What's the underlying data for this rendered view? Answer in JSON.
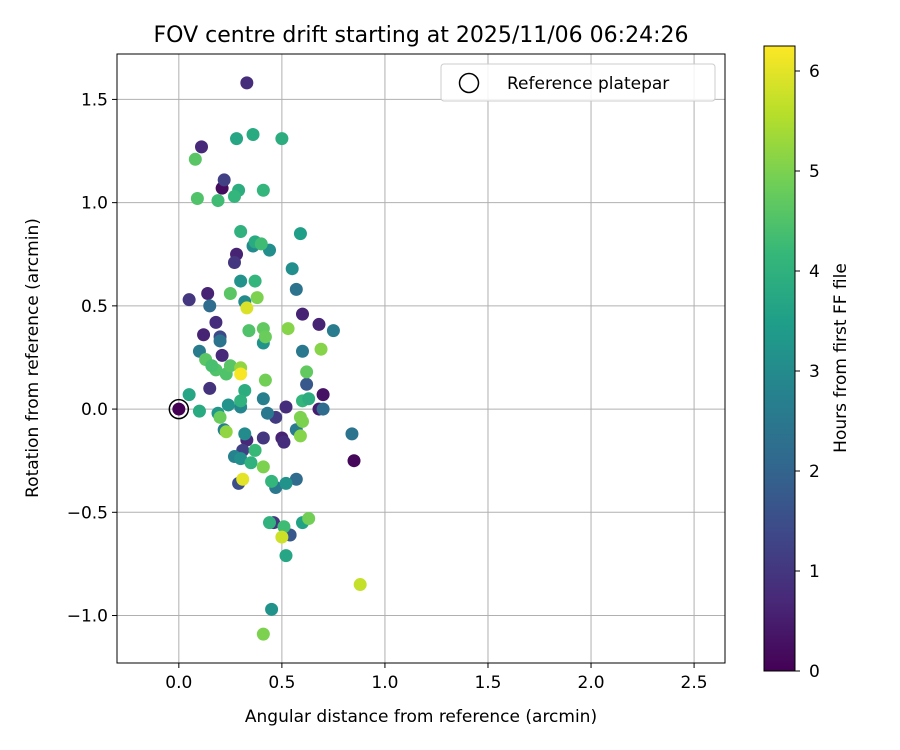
{
  "chart_data": {
    "type": "scatter",
    "title": "FOV centre drift starting at 2025/11/06 06:24:26",
    "xlabel": "Angular distance from reference (arcmin)",
    "ylabel": "Rotation from reference (arcmin)",
    "xlim": [
      -0.3,
      2.65
    ],
    "ylim": [
      -1.23,
      1.72
    ],
    "xticks": [
      0.0,
      0.5,
      1.0,
      1.5,
      2.0,
      2.5
    ],
    "xtick_labels": [
      "0.0",
      "0.5",
      "1.0",
      "1.5",
      "2.0",
      "2.5"
    ],
    "yticks": [
      -1.0,
      -0.5,
      0.0,
      0.5,
      1.0,
      1.5
    ],
    "ytick_labels": [
      "−1.0",
      "−0.5",
      "0.0",
      "0.5",
      "1.0",
      "1.5"
    ],
    "grid": true,
    "legend": {
      "position": "top-right",
      "label": "Reference platepar"
    },
    "reference_point": {
      "x": 0.0,
      "y": 0.0
    },
    "colorbar": {
      "label": "Hours from first FF file",
      "range": [
        0,
        6.25
      ],
      "ticks": [
        0,
        1,
        2,
        3,
        4,
        5,
        6
      ],
      "tick_labels": [
        "0",
        "1",
        "2",
        "3",
        "4",
        "5",
        "6"
      ],
      "colormap": "viridis"
    },
    "points": [
      {
        "x": 0.0,
        "y": 0.0,
        "c": 0.0
      },
      {
        "x": 0.33,
        "y": 1.58,
        "c": 0.8
      },
      {
        "x": 0.11,
        "y": 1.27,
        "c": 0.7
      },
      {
        "x": 0.21,
        "y": 1.07,
        "c": 0.2
      },
      {
        "x": 0.22,
        "y": 1.11,
        "c": 1.2
      },
      {
        "x": 0.28,
        "y": 0.75,
        "c": 0.6
      },
      {
        "x": 0.27,
        "y": 0.71,
        "c": 1.0
      },
      {
        "x": 0.05,
        "y": 0.53,
        "c": 1.0
      },
      {
        "x": 0.14,
        "y": 0.56,
        "c": 0.6
      },
      {
        "x": 0.12,
        "y": 0.36,
        "c": 0.6
      },
      {
        "x": 0.18,
        "y": 0.42,
        "c": 0.8
      },
      {
        "x": 0.2,
        "y": 0.35,
        "c": 1.4
      },
      {
        "x": 0.21,
        "y": 0.26,
        "c": 0.7
      },
      {
        "x": 0.15,
        "y": 0.1,
        "c": 0.9
      },
      {
        "x": 0.6,
        "y": 0.46,
        "c": 0.6
      },
      {
        "x": 0.68,
        "y": 0.41,
        "c": 0.6
      },
      {
        "x": 0.7,
        "y": 0.07,
        "c": 0.3
      },
      {
        "x": 0.68,
        "y": 0.0,
        "c": 0.5
      },
      {
        "x": 0.85,
        "y": -0.25,
        "c": 0.1
      },
      {
        "x": 0.52,
        "y": 0.01,
        "c": 0.8
      },
      {
        "x": 0.47,
        "y": -0.04,
        "c": 1.1
      },
      {
        "x": 0.41,
        "y": -0.14,
        "c": 1.0
      },
      {
        "x": 0.5,
        "y": -0.14,
        "c": 0.6
      },
      {
        "x": 0.51,
        "y": -0.16,
        "c": 0.8
      },
      {
        "x": 0.33,
        "y": -0.15,
        "c": 0.7
      },
      {
        "x": 0.31,
        "y": -0.2,
        "c": 1.2
      },
      {
        "x": 0.29,
        "y": -0.36,
        "c": 1.5
      },
      {
        "x": 0.46,
        "y": -0.55,
        "c": 1.0
      },
      {
        "x": 0.54,
        "y": -0.61,
        "c": 1.7
      },
      {
        "x": 0.15,
        "y": 0.5,
        "c": 2.2
      },
      {
        "x": 0.2,
        "y": 0.33,
        "c": 2.4
      },
      {
        "x": 0.1,
        "y": 0.28,
        "c": 2.6
      },
      {
        "x": 0.6,
        "y": 0.28,
        "c": 2.5
      },
      {
        "x": 0.62,
        "y": 0.12,
        "c": 1.7
      },
      {
        "x": 0.57,
        "y": 0.58,
        "c": 2.4
      },
      {
        "x": 0.75,
        "y": 0.38,
        "c": 2.6
      },
      {
        "x": 0.7,
        "y": 0.0,
        "c": 2.2
      },
      {
        "x": 0.84,
        "y": -0.12,
        "c": 2.4
      },
      {
        "x": 0.41,
        "y": 0.05,
        "c": 2.7
      },
      {
        "x": 0.43,
        "y": -0.02,
        "c": 2.5
      },
      {
        "x": 0.57,
        "y": -0.1,
        "c": 2.6
      },
      {
        "x": 0.57,
        "y": -0.34,
        "c": 2.2
      },
      {
        "x": 0.47,
        "y": -0.38,
        "c": 2.5
      },
      {
        "x": 0.27,
        "y": -0.23,
        "c": 2.8
      },
      {
        "x": 0.22,
        "y": -0.1,
        "c": 2.7
      },
      {
        "x": 0.3,
        "y": 0.01,
        "c": 2.9
      },
      {
        "x": 0.32,
        "y": -0.12,
        "c": 3.0
      },
      {
        "x": 0.36,
        "y": 0.79,
        "c": 3.0
      },
      {
        "x": 0.44,
        "y": 0.77,
        "c": 3.1
      },
      {
        "x": 0.55,
        "y": 0.68,
        "c": 3.1
      },
      {
        "x": 0.3,
        "y": 0.62,
        "c": 3.2
      },
      {
        "x": 0.32,
        "y": 0.52,
        "c": 3.0
      },
      {
        "x": 0.41,
        "y": 0.32,
        "c": 3.2
      },
      {
        "x": 0.19,
        "y": -0.02,
        "c": 3.3
      },
      {
        "x": 0.24,
        "y": 0.02,
        "c": 3.2
      },
      {
        "x": 0.3,
        "y": -0.24,
        "c": 3.1
      },
      {
        "x": 0.52,
        "y": -0.36,
        "c": 3.2
      },
      {
        "x": 0.45,
        "y": -0.97,
        "c": 3.2
      },
      {
        "x": 0.59,
        "y": 0.85,
        "c": 3.5
      },
      {
        "x": 0.36,
        "y": 1.33,
        "c": 3.8
      },
      {
        "x": 0.28,
        "y": 1.31,
        "c": 3.7
      },
      {
        "x": 0.5,
        "y": 1.31,
        "c": 3.9
      },
      {
        "x": 0.29,
        "y": 1.06,
        "c": 3.9
      },
      {
        "x": 0.27,
        "y": 1.03,
        "c": 4.1
      },
      {
        "x": 0.41,
        "y": 1.06,
        "c": 4.1
      },
      {
        "x": 0.3,
        "y": 0.86,
        "c": 4.0
      },
      {
        "x": 0.37,
        "y": 0.81,
        "c": 3.8
      },
      {
        "x": 0.37,
        "y": 0.62,
        "c": 4.1
      },
      {
        "x": 0.05,
        "y": 0.07,
        "c": 3.7
      },
      {
        "x": 0.1,
        "y": -0.01,
        "c": 3.8
      },
      {
        "x": 0.32,
        "y": 0.09,
        "c": 3.9
      },
      {
        "x": 0.3,
        "y": 0.04,
        "c": 4.0
      },
      {
        "x": 0.6,
        "y": 0.04,
        "c": 4.1
      },
      {
        "x": 0.63,
        "y": 0.05,
        "c": 3.9
      },
      {
        "x": 0.35,
        "y": -0.26,
        "c": 4.0
      },
      {
        "x": 0.37,
        "y": -0.2,
        "c": 4.2
      },
      {
        "x": 0.45,
        "y": -0.35,
        "c": 4.1
      },
      {
        "x": 0.51,
        "y": -0.57,
        "c": 4.3
      },
      {
        "x": 0.52,
        "y": -0.71,
        "c": 3.7
      },
      {
        "x": 0.6,
        "y": -0.55,
        "c": 3.6
      },
      {
        "x": 0.44,
        "y": -0.55,
        "c": 4.0
      },
      {
        "x": 0.08,
        "y": 1.21,
        "c": 4.6
      },
      {
        "x": 0.09,
        "y": 1.02,
        "c": 4.5
      },
      {
        "x": 0.19,
        "y": 1.01,
        "c": 4.3
      },
      {
        "x": 0.4,
        "y": 0.8,
        "c": 4.3
      },
      {
        "x": 0.25,
        "y": 0.56,
        "c": 4.6
      },
      {
        "x": 0.38,
        "y": 0.54,
        "c": 5.0
      },
      {
        "x": 0.34,
        "y": 0.38,
        "c": 4.5
      },
      {
        "x": 0.41,
        "y": 0.39,
        "c": 4.7
      },
      {
        "x": 0.42,
        "y": 0.35,
        "c": 4.8
      },
      {
        "x": 0.13,
        "y": 0.24,
        "c": 4.6
      },
      {
        "x": 0.18,
        "y": 0.19,
        "c": 4.5
      },
      {
        "x": 0.23,
        "y": 0.17,
        "c": 4.5
      },
      {
        "x": 0.25,
        "y": 0.21,
        "c": 4.6
      },
      {
        "x": 0.16,
        "y": 0.21,
        "c": 4.4
      },
      {
        "x": 0.53,
        "y": 0.39,
        "c": 5.1
      },
      {
        "x": 0.69,
        "y": 0.29,
        "c": 5.1
      },
      {
        "x": 0.62,
        "y": 0.18,
        "c": 4.7
      },
      {
        "x": 0.3,
        "y": 0.2,
        "c": 5.2
      },
      {
        "x": 0.42,
        "y": 0.14,
        "c": 4.9
      },
      {
        "x": 0.59,
        "y": -0.04,
        "c": 5.0
      },
      {
        "x": 0.6,
        "y": -0.06,
        "c": 5.0
      },
      {
        "x": 0.59,
        "y": -0.13,
        "c": 5.1
      },
      {
        "x": 0.2,
        "y": -0.04,
        "c": 4.8
      },
      {
        "x": 0.23,
        "y": -0.11,
        "c": 5.2
      },
      {
        "x": 0.41,
        "y": -0.28,
        "c": 5.0
      },
      {
        "x": 0.63,
        "y": -0.53,
        "c": 4.9
      },
      {
        "x": 0.41,
        "y": -1.09,
        "c": 5.0
      },
      {
        "x": 0.33,
        "y": 0.49,
        "c": 5.9
      },
      {
        "x": 0.3,
        "y": 0.17,
        "c": 6.2
      },
      {
        "x": 0.31,
        "y": -0.34,
        "c": 6.0
      },
      {
        "x": 0.5,
        "y": -0.62,
        "c": 5.8
      },
      {
        "x": 0.88,
        "y": -0.85,
        "c": 5.7
      }
    ]
  }
}
